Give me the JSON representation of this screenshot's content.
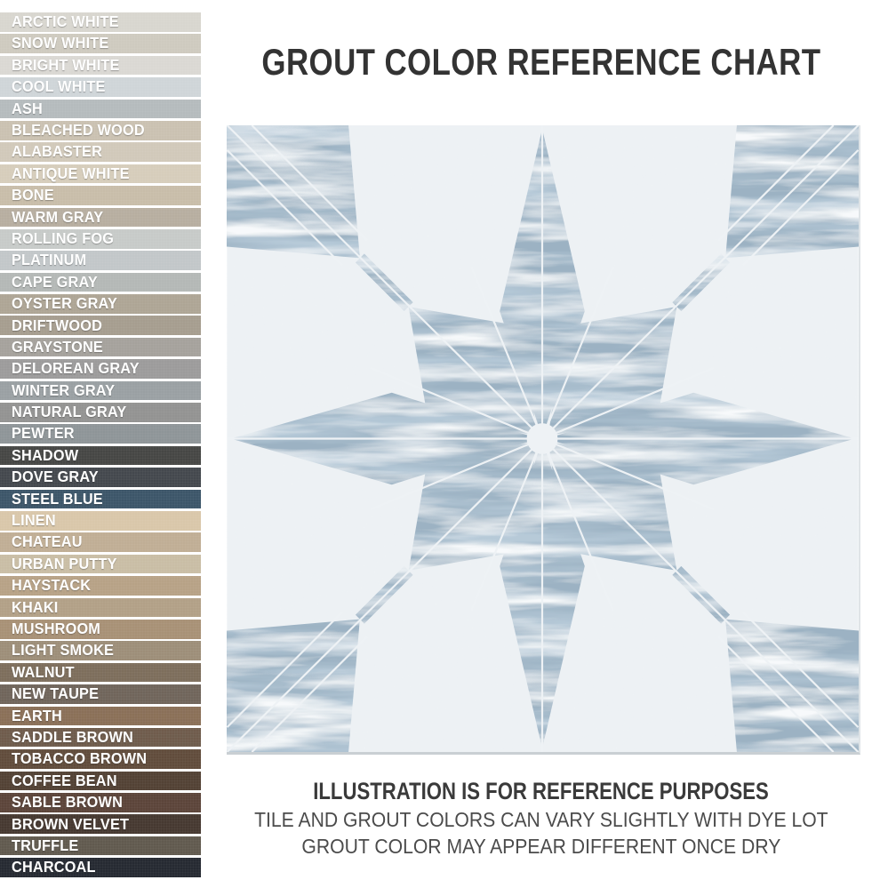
{
  "title": "GROUT COLOR REFERENCE CHART",
  "swatches": [
    {
      "name": "ARCTIC WHITE",
      "color": "#d8d6cf"
    },
    {
      "name": "SNOW WHITE",
      "color": "#cecabf"
    },
    {
      "name": "BRIGHT WHITE",
      "color": "#dad8d3"
    },
    {
      "name": "COOL WHITE",
      "color": "#cfd5d8"
    },
    {
      "name": "ASH",
      "color": "#b5bbbd"
    },
    {
      "name": "BLEACHED WOOD",
      "color": "#cac1b1"
    },
    {
      "name": "ALABASTER",
      "color": "#d1c9ba"
    },
    {
      "name": "ANTIQUE WHITE",
      "color": "#d6cdbb"
    },
    {
      "name": "BONE",
      "color": "#c8bda9"
    },
    {
      "name": "WARM GRAY",
      "color": "#b7aea0"
    },
    {
      "name": "ROLLING FOG",
      "color": "#c7cac8"
    },
    {
      "name": "PLATINUM",
      "color": "#c2c7c9"
    },
    {
      "name": "CAPE GRAY",
      "color": "#b4b8b6"
    },
    {
      "name": "OYSTER GRAY",
      "color": "#aea595"
    },
    {
      "name": "DRIFTWOOD",
      "color": "#a69d8f"
    },
    {
      "name": "GRAYSTONE",
      "color": "#a5a29c"
    },
    {
      "name": "DELOREAN GRAY",
      "color": "#9c9b9b"
    },
    {
      "name": "WINTER GRAY",
      "color": "#9aa0a3"
    },
    {
      "name": "NATURAL GRAY",
      "color": "#939392"
    },
    {
      "name": "PEWTER",
      "color": "#8e9598"
    },
    {
      "name": "SHADOW",
      "color": "#464745"
    },
    {
      "name": "DOVE GRAY",
      "color": "#44484e"
    },
    {
      "name": "STEEL BLUE",
      "color": "#3d5669"
    },
    {
      "name": "LINEN",
      "color": "#d9c7aa"
    },
    {
      "name": "CHATEAU",
      "color": "#c0ae95"
    },
    {
      "name": "URBAN PUTTY",
      "color": "#c9bda5"
    },
    {
      "name": "HAYSTACK",
      "color": "#b7a286"
    },
    {
      "name": "KHAKI",
      "color": "#b2a087"
    },
    {
      "name": "MUSHROOM",
      "color": "#a89176"
    },
    {
      "name": "LIGHT SMOKE",
      "color": "#9d8e79"
    },
    {
      "name": "WALNUT",
      "color": "#7d6e5c"
    },
    {
      "name": "NEW TAUPE",
      "color": "#70655b"
    },
    {
      "name": "EARTH",
      "color": "#8a7058"
    },
    {
      "name": "SADDLE BROWN",
      "color": "#6f5c4c"
    },
    {
      "name": "TOBACCO BROWN",
      "color": "#614c3c"
    },
    {
      "name": "COFFEE BEAN",
      "color": "#534235"
    },
    {
      "name": "SABLE BROWN",
      "color": "#5c453a"
    },
    {
      "name": "BROWN VELVET",
      "color": "#463931"
    },
    {
      "name": "TRUFFLE",
      "color": "#615a4f"
    },
    {
      "name": "CHARCOAL",
      "color": "#262a32"
    }
  ],
  "tile": {
    "pattern": "weathered 8-point star tile",
    "background_color": "#eef2f5",
    "star_color": "#9cb2c3"
  },
  "footer": {
    "heading": "ILLUSTRATION IS FOR REFERENCE PURPOSES",
    "line1": "TILE AND GROUT COLORS CAN VARY SLIGHTLY WITH DYE LOT",
    "line2": "GROUT COLOR MAY APPEAR DIFFERENT ONCE DRY"
  }
}
